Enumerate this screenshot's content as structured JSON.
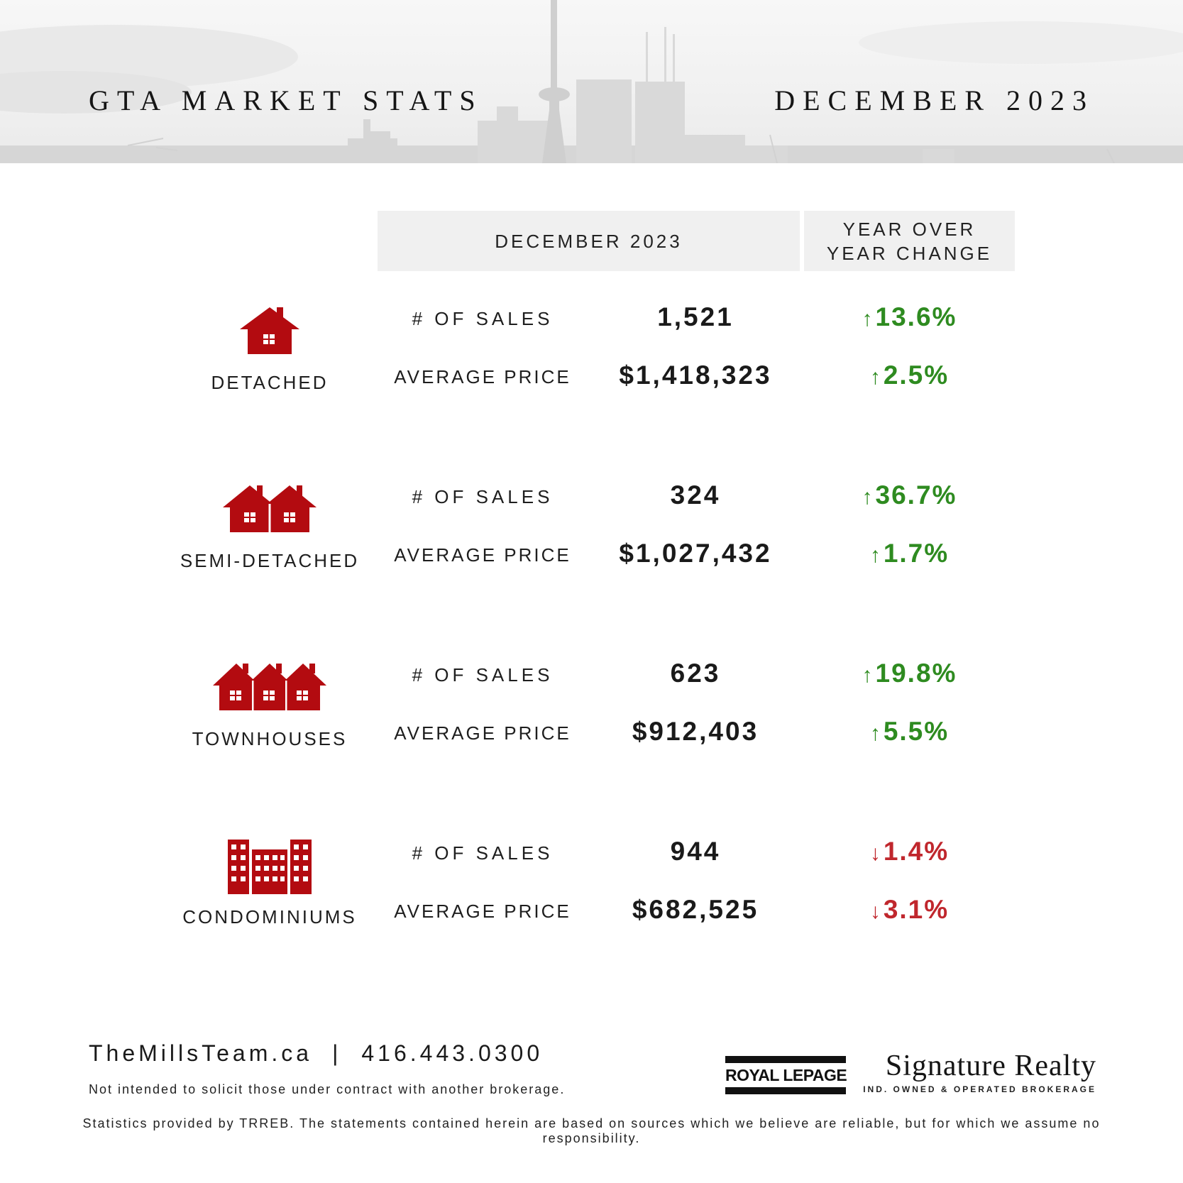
{
  "header": {
    "title_left": "GTA MARKET STATS",
    "title_right": "DECEMBER 2023"
  },
  "table_header": {
    "period": "DECEMBER 2023",
    "change_line1": "YEAR OVER",
    "change_line2": "YEAR CHANGE"
  },
  "groups": [
    {
      "type": "DETACHED",
      "icon": "detached-house-icon",
      "sales_label": "# OF SALES",
      "sales_value": "1,521",
      "sales_change": "13.6%",
      "sales_direction": "up",
      "price_label": "AVERAGE PRICE",
      "price_value": "$1,418,323",
      "price_change": "2.5%",
      "price_direction": "up"
    },
    {
      "type": "SEMI-DETACHED",
      "icon": "semi-detached-house-icon",
      "sales_label": "# OF SALES",
      "sales_value": "324",
      "sales_change": "36.7%",
      "sales_direction": "up",
      "price_label": "AVERAGE PRICE",
      "price_value": "$1,027,432",
      "price_change": "1.7%",
      "price_direction": "up"
    },
    {
      "type": "TOWNHOUSES",
      "icon": "townhouse-icon",
      "sales_label": "# OF SALES",
      "sales_value": "623",
      "sales_change": "19.8%",
      "sales_direction": "up",
      "price_label": "AVERAGE PRICE",
      "price_value": "$912,403",
      "price_change": "5.5%",
      "price_direction": "up"
    },
    {
      "type": "CONDOMINIUMS",
      "icon": "condominium-icon",
      "sales_label": "# OF SALES",
      "sales_value": "944",
      "sales_change": "1.4%",
      "sales_direction": "down",
      "price_label": "AVERAGE PRICE",
      "price_value": "$682,525",
      "price_change": "3.1%",
      "price_direction": "down"
    }
  ],
  "arrows": {
    "up": "↑",
    "down": "↓"
  },
  "colors": {
    "up": "#2e8b20",
    "down": "#c0272d",
    "icon": "#b30b10"
  },
  "footer": {
    "website": "TheMillsTeam.ca",
    "separator": "|",
    "phone": "416.443.0300",
    "note": "Not intended to solicit those under contract with another brokerage.",
    "disclaimer": "Statistics provided by TRREB. The statements contained herein are based on sources which we believe are reliable, but for which we assume no responsibility."
  },
  "logos": {
    "royal_lepage": "ROYAL LEPAGE",
    "signature": "Signature Realty",
    "signature_sub": "IND. OWNED & OPERATED BROKERAGE"
  }
}
